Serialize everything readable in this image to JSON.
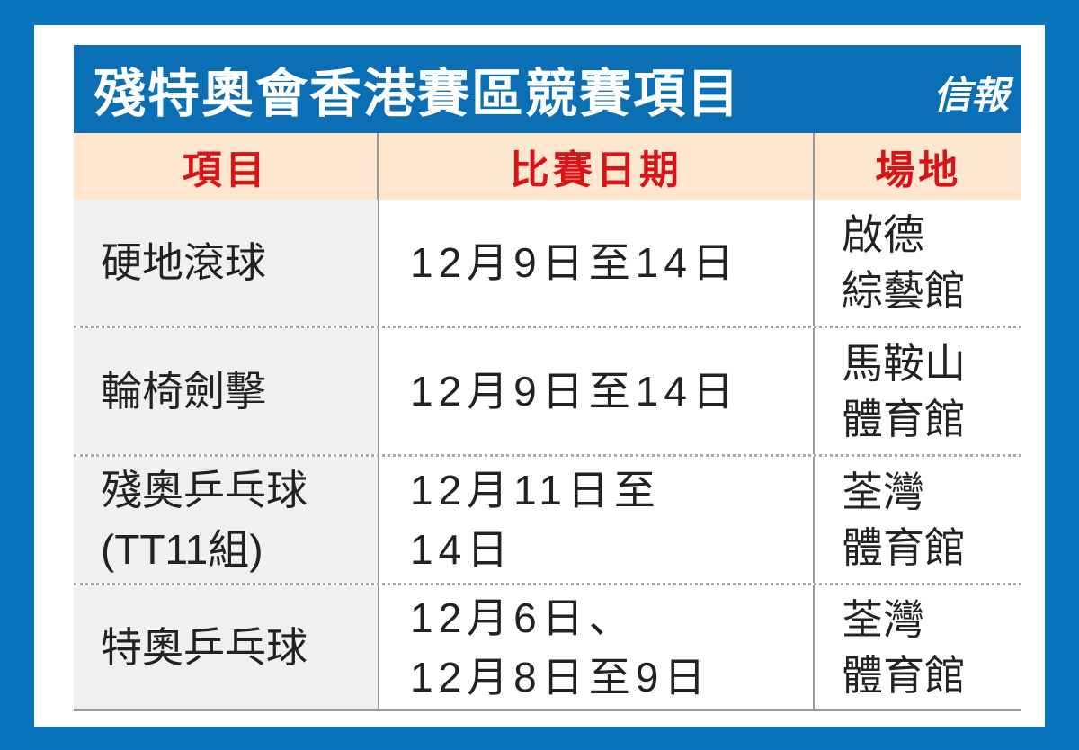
{
  "title": "殘特奧會香港賽區競賽項目",
  "logo": "信報",
  "colors": {
    "frame": "#0a74bd",
    "title_bar": "#0a6fb5",
    "header_bg": "#fde8cf",
    "header_text": "#d7141a",
    "first_col_bg": "#eff1f1"
  },
  "headers": [
    "項目",
    "比賽日期",
    "場地"
  ],
  "rows": [
    {
      "event": [
        "硬地滾球"
      ],
      "dates": [
        "12月9日至14日"
      ],
      "venue": [
        "啟德",
        "綜藝館"
      ]
    },
    {
      "event": [
        "輪椅劍擊"
      ],
      "dates": [
        "12月9日至14日"
      ],
      "venue": [
        "馬鞍山",
        "體育館"
      ]
    },
    {
      "event": [
        "殘奧乒乓球",
        "(TT11組)"
      ],
      "dates": [
        "12月11日至",
        "14日"
      ],
      "venue": [
        "荃灣",
        "體育館"
      ]
    },
    {
      "event": [
        "特奧乒乓球"
      ],
      "dates": [
        "12月6日、",
        "12月8日至9日"
      ],
      "venue": [
        "荃灣",
        "體育館"
      ]
    }
  ]
}
